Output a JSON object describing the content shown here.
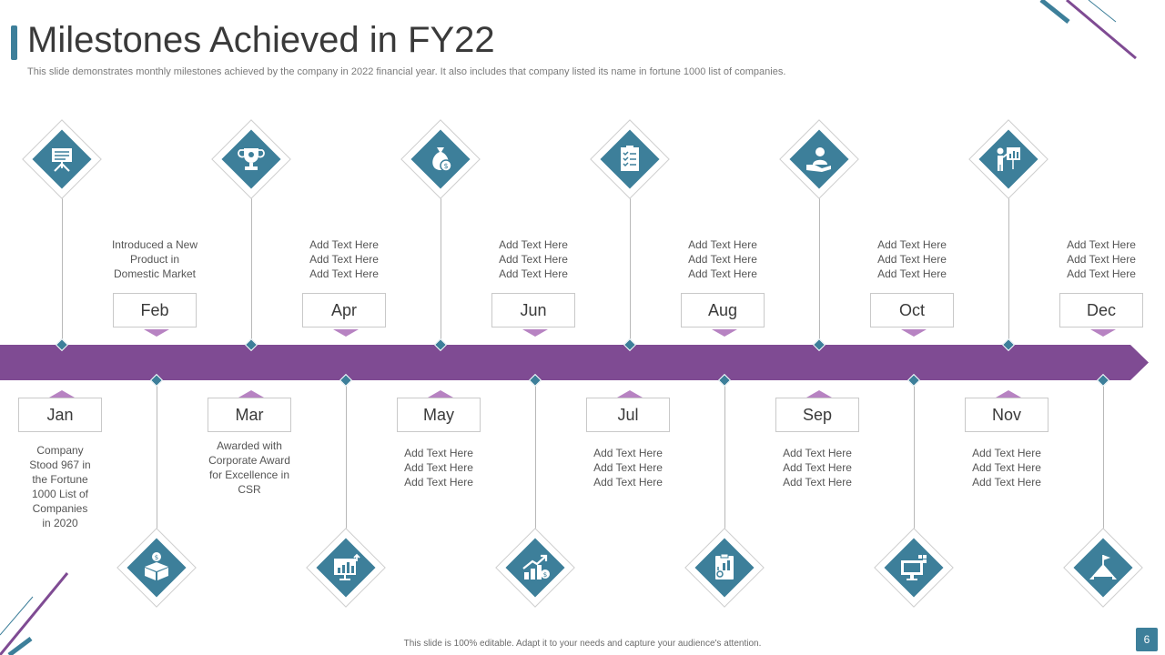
{
  "header": {
    "title": "Milestones Achieved in FY22",
    "subtitle": "This slide demonstrates monthly milestones achieved by the company in 2022 financial year. It also includes that company listed its name in fortune 1000 list of companies."
  },
  "timeline": {
    "top": [
      {
        "month": "Feb",
        "lines": [
          "Introduced  a New",
          "Product in",
          "Domestic Market"
        ],
        "icon": "presentation-board-icon"
      },
      {
        "month": "Apr",
        "lines": [
          "Add Text Here",
          "Add Text Here",
          "Add Text Here"
        ],
        "icon": "trophy-icon"
      },
      {
        "month": "Jun",
        "lines": [
          "Add Text Here",
          "Add Text Here",
          "Add Text Here"
        ],
        "icon": "money-bag-icon"
      },
      {
        "month": "Aug",
        "lines": [
          "Add Text Here",
          "Add Text Here",
          "Add Text Here"
        ],
        "icon": "checklist-icon"
      },
      {
        "month": "Oct",
        "lines": [
          "Add Text Here",
          "Add Text Here",
          "Add Text Here"
        ],
        "icon": "handshake-icon"
      },
      {
        "month": "Dec",
        "lines": [
          "Add Text Here",
          "Add Text Here",
          "Add Text Here"
        ],
        "icon": "presenter-icon"
      }
    ],
    "bottom": [
      {
        "month": "Jan",
        "lines": [
          "Company",
          "Stood 967 in",
          "the Fortune",
          "1000 List of",
          "Companies",
          "in 2020"
        ],
        "icon": "money-box-icon"
      },
      {
        "month": "Mar",
        "lines": [
          "Awarded  with",
          "Corporate  Award",
          "for Excellence in",
          "CSR"
        ],
        "icon": "growth-chart-icon"
      },
      {
        "month": "May",
        "lines": [
          "Add Text Here",
          "Add Text Here",
          "Add Text Here"
        ],
        "icon": "rising-bars-icon"
      },
      {
        "month": "Jul",
        "lines": [
          "Add Text Here",
          "Add Text Here",
          "Add Text Here"
        ],
        "icon": "clipboard-chart-icon"
      },
      {
        "month": "Sep",
        "lines": [
          "Add Text Here",
          "Add Text Here",
          "Add Text Here"
        ],
        "icon": "monitor-icon"
      },
      {
        "month": "Nov",
        "lines": [
          "Add Text Here",
          "Add Text Here",
          "Add Text Here"
        ],
        "icon": "mountain-flag-icon"
      }
    ]
  },
  "footer": {
    "note": "This slide is 100% editable.  Adapt it to your needs and capture your audience's attention.",
    "page_number": "6"
  },
  "colors": {
    "accent_teal": "#3d7f9a",
    "accent_purple": "#7f4b93",
    "pointer_purple": "#b783c2"
  }
}
